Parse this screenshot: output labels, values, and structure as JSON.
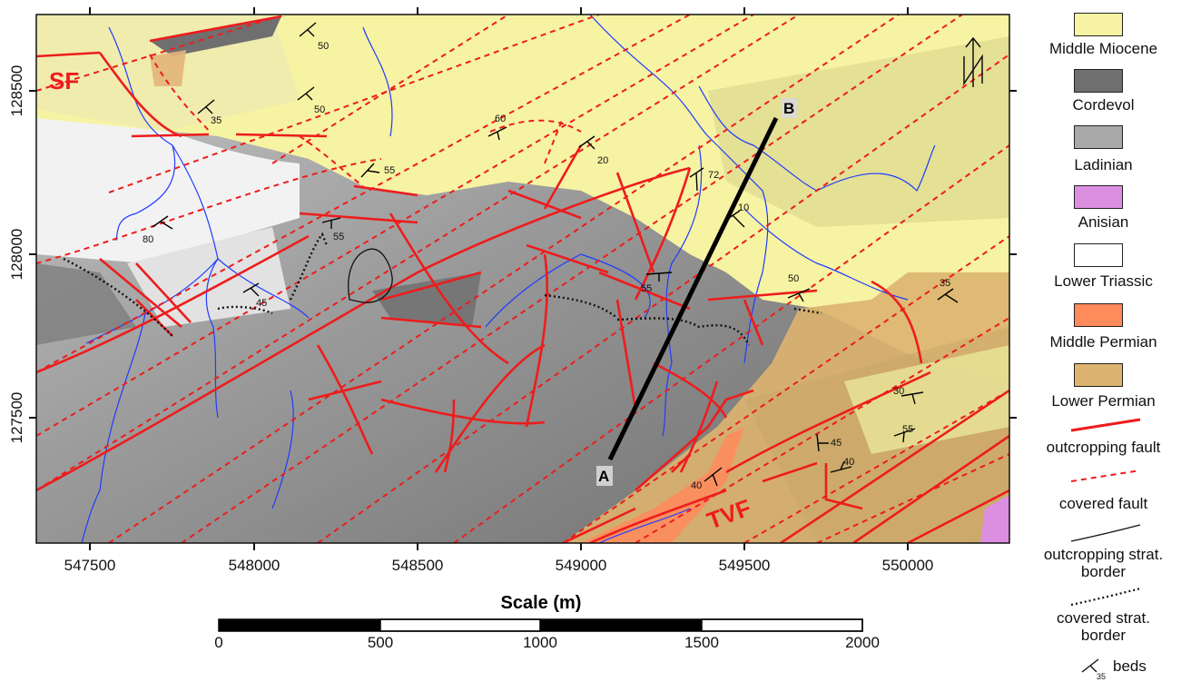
{
  "map": {
    "x_ticks": [
      "547500",
      "548000",
      "548500",
      "549000",
      "549500",
      "550000"
    ],
    "y_ticks": [
      "128500",
      "128000",
      "127500"
    ],
    "fault_labels": [
      "SF",
      "TVF"
    ],
    "profile_labels": [
      "A",
      "B"
    ],
    "dip_values": [
      "50",
      "50",
      "35",
      "60",
      "20",
      "55",
      "72",
      "80",
      "55",
      "10",
      "45",
      "55",
      "50",
      "35",
      "30",
      "45",
      "55",
      "40",
      "40"
    ],
    "north_arrow_letter": "N",
    "colors": {
      "middle_miocene": "#f4f0a0",
      "cordevol": "#6b6b6b",
      "ladinian": "#a6a6a6",
      "anisian": "#d98ad9",
      "lower_triassic": "#ffffff",
      "middle_permian": "#ff8a5e",
      "lower_permian": "#dfb06b",
      "fault": "#ee1c1c",
      "drainage": "#1f3cff"
    }
  },
  "scale_bar": {
    "title": "Scale (m)",
    "labels": [
      "0",
      "500",
      "1000",
      "1500",
      "2000"
    ]
  },
  "legend": {
    "items": [
      {
        "label": "Middle Miocene",
        "color": "#f6f3a3"
      },
      {
        "label": "Cordevol",
        "color": "#6f6f6f"
      },
      {
        "label": "Ladinian",
        "color": "#a9a9a9"
      },
      {
        "label": "Anisian",
        "color": "#dc8ee0"
      },
      {
        "label": "Lower Triassic",
        "color": "#ffffff"
      },
      {
        "label": "Middle Permian",
        "color": "#ff8a5c"
      },
      {
        "label": "Lower Permian",
        "color": "#ddb46f"
      }
    ],
    "symbols": [
      {
        "label": "outcropping fault",
        "icon": "solid-red-line-icon"
      },
      {
        "label": "covered fault",
        "icon": "dashed-red-line-icon"
      },
      {
        "label": "outcropping strat. border",
        "icon": "solid-black-line-icon"
      },
      {
        "label": "covered strat. border",
        "icon": "dotted-black-line-icon"
      },
      {
        "label": "beds",
        "icon": "strike-dip-icon",
        "dip": "35"
      }
    ]
  }
}
